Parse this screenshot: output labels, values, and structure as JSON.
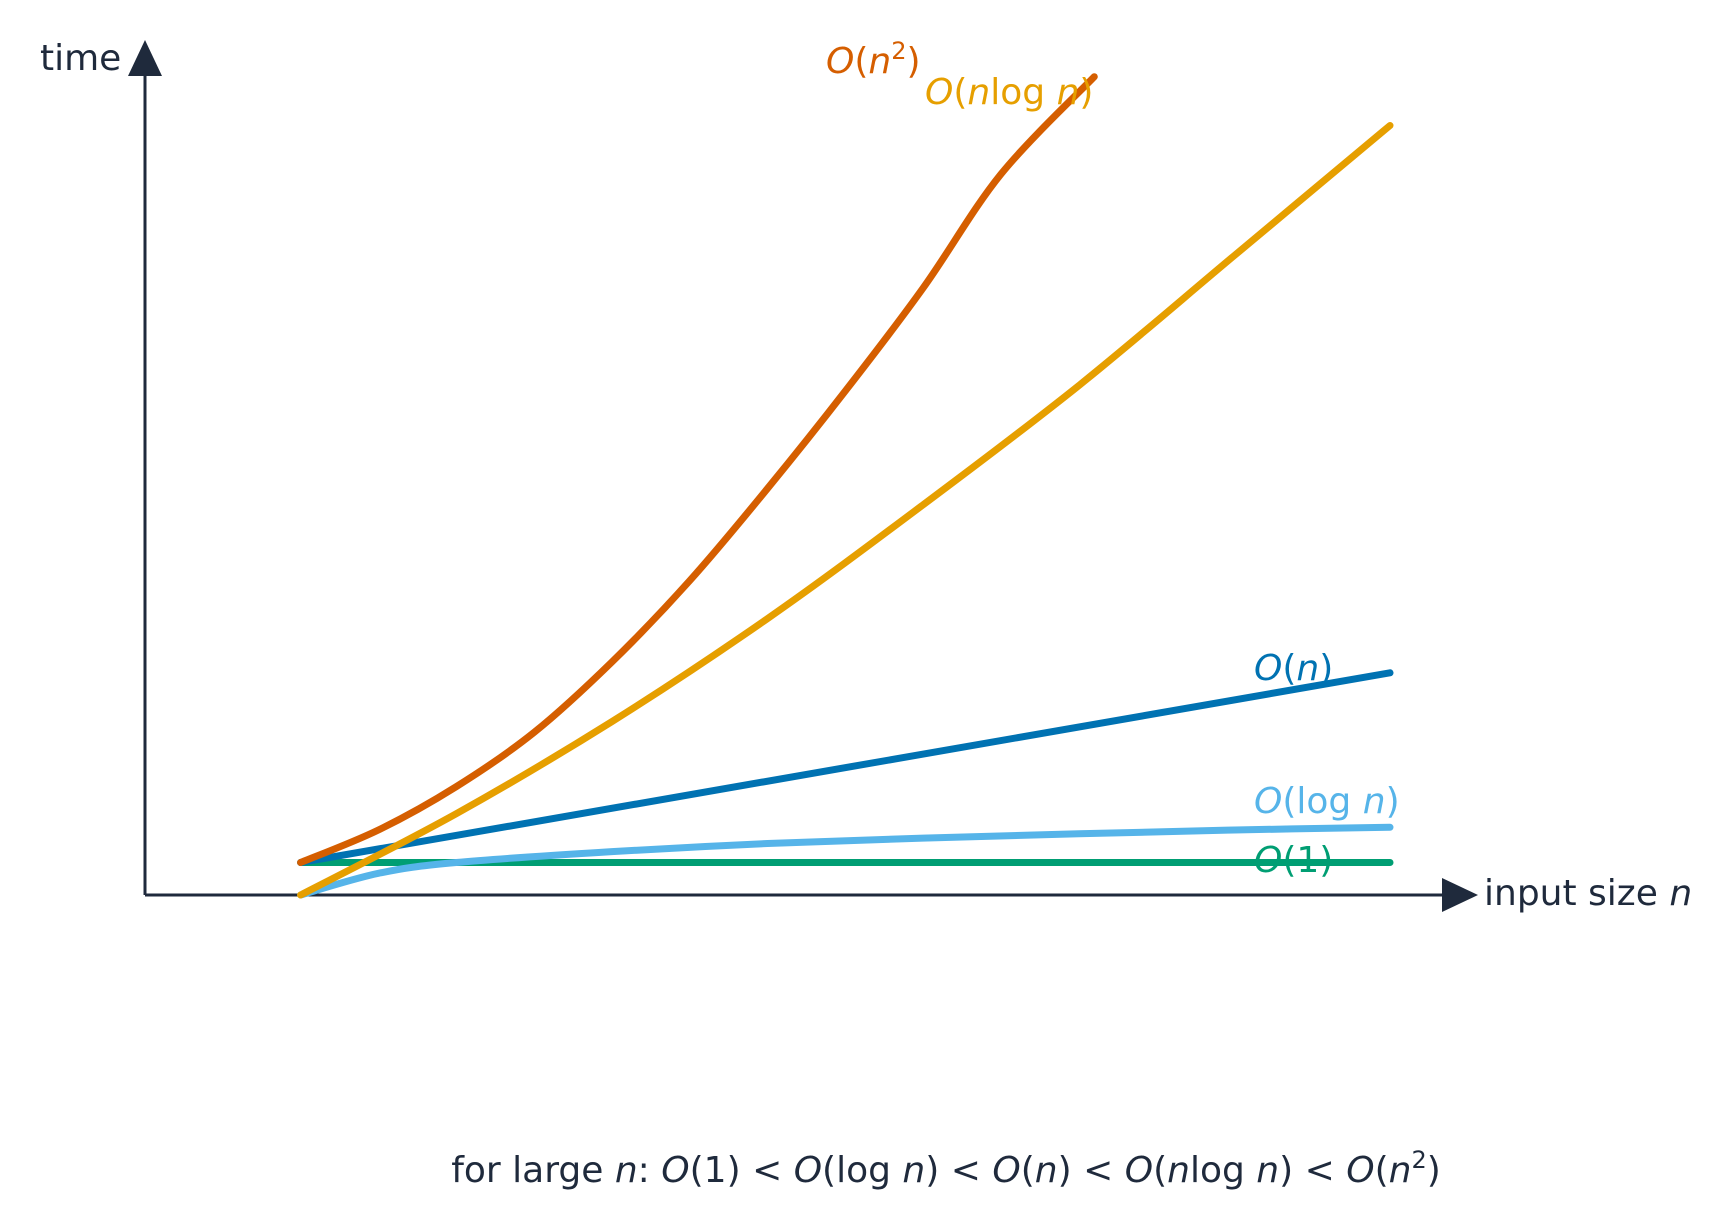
{
  "chart_data": {
    "type": "line",
    "xlabel": {
      "text": "input size ",
      "var": "n"
    },
    "ylabel": "time",
    "grid": false,
    "legend": "inline labels at line ends",
    "xlim": [
      0,
      16
    ],
    "ylim": [
      0,
      15.5
    ],
    "series": [
      {
        "id": "n2",
        "name": "O(n²)",
        "color": "#d55e00",
        "x": [
          2,
          3,
          4,
          5,
          6,
          7,
          8,
          9,
          10,
          11,
          12.2
        ],
        "y": [
          0.6,
          1.2,
          2.0,
          3.0,
          4.3,
          5.8,
          7.5,
          9.3,
          11.2,
          13.3,
          15.1
        ]
      },
      {
        "id": "nlogn",
        "name": "O(n log n)",
        "color": "#e69f00",
        "x": [
          2,
          4,
          6,
          8,
          10,
          12,
          14,
          16
        ],
        "y": [
          0.0,
          1.5,
          3.2,
          5.1,
          7.2,
          9.4,
          11.8,
          14.2
        ]
      },
      {
        "id": "n",
        "name": "O(n)",
        "color": "#0072b2",
        "x": [
          2,
          16
        ],
        "y": [
          0.6,
          4.1
        ]
      },
      {
        "id": "logn",
        "name": "O(log n)",
        "color": "#56b4e9",
        "x": [
          2,
          3,
          4,
          6,
          8,
          10,
          12,
          14,
          16
        ],
        "y": [
          0.0,
          0.4,
          0.6,
          0.8,
          0.95,
          1.05,
          1.13,
          1.2,
          1.25
        ]
      },
      {
        "id": "one",
        "name": "O(1)",
        "color": "#009e73",
        "x": [
          2,
          16
        ],
        "y": [
          0.6,
          0.6
        ]
      }
    ],
    "annotation": "for large n:  O(1) < O(log n) < O(n) < O(n log n) < O(n²)"
  },
  "labels": {
    "time": "time",
    "input_size": "input size",
    "n_var": "n",
    "caption_prefix": "for large",
    "colon": ":",
    "lt": "<",
    "O": "O",
    "one": "1",
    "log": "log",
    "two": "2",
    "lp": "(",
    "rp": ")"
  }
}
